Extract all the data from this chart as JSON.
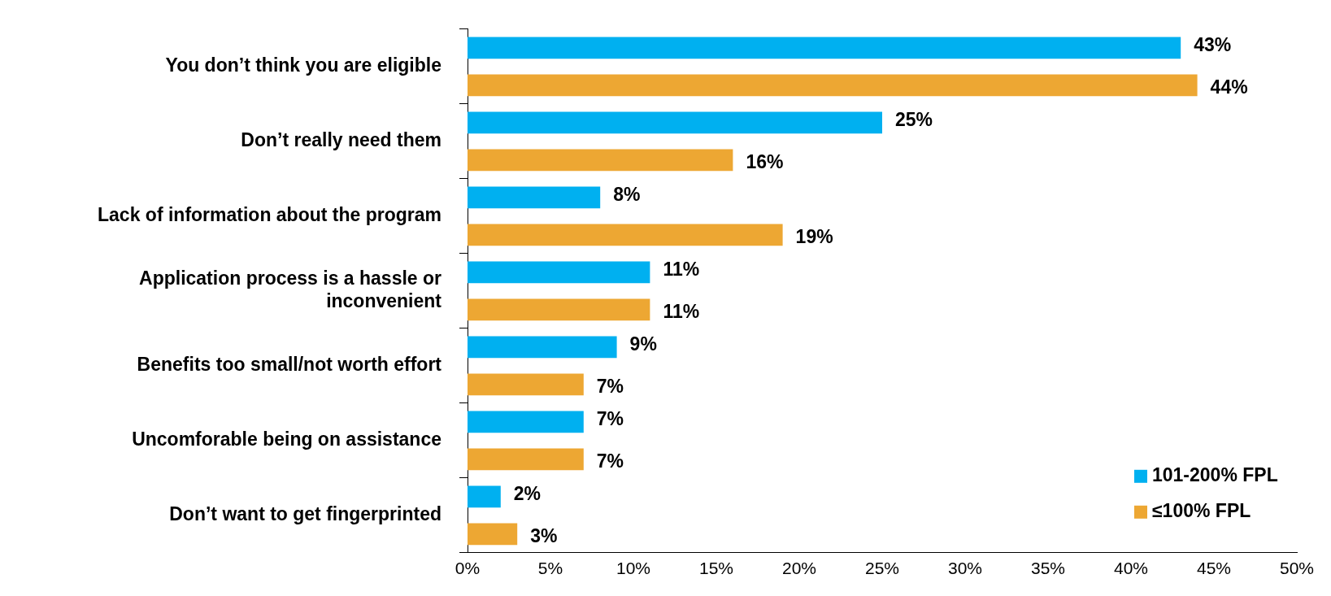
{
  "chart_data": {
    "type": "bar",
    "orientation": "horizontal",
    "categories": [
      "You don’t think you are eligible",
      "Don’t really need them",
      "Lack of information about the program",
      "Application process is a hassle or inconvenient",
      "Benefits too small/not worth effort",
      "Uncomforable being on assistance",
      "Don’t want to get fingerprinted"
    ],
    "series": [
      {
        "name": "101-200% FPL",
        "color": "#00b0f0",
        "values": [
          43,
          25,
          8,
          11,
          9,
          7,
          2
        ],
        "value_labels": [
          "43%",
          "25%",
          "8%",
          "11%",
          "9%",
          "7%",
          "2%"
        ]
      },
      {
        "name": "≤100% FPL",
        "color": "#eda733",
        "values": [
          44,
          16,
          19,
          11,
          7,
          7,
          3
        ],
        "value_labels": [
          "44%",
          "16%",
          "19%",
          "11%",
          "7%",
          "7%",
          "3%"
        ]
      }
    ],
    "xlim": [
      0,
      50
    ],
    "xticks": [
      {
        "value": 0,
        "label": "0%"
      },
      {
        "value": 5,
        "label": "5%"
      },
      {
        "value": 10,
        "label": "10%"
      },
      {
        "value": 15,
        "label": "15%"
      },
      {
        "value": 20,
        "label": "20%"
      },
      {
        "value": 25,
        "label": "25%"
      },
      {
        "value": 30,
        "label": "30%"
      },
      {
        "value": 35,
        "label": "35%"
      },
      {
        "value": 40,
        "label": "40%"
      },
      {
        "value": 45,
        "label": "45%"
      },
      {
        "value": 50,
        "label": "50%"
      }
    ],
    "grid": false,
    "legend": "bottom right"
  }
}
